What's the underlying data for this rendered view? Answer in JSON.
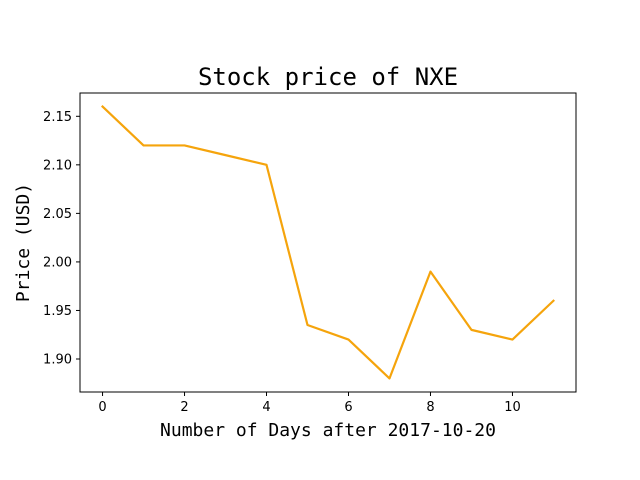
{
  "chart_data": {
    "type": "line",
    "title": "Stock price of NXE",
    "xlabel": "Number of Days after 2017-10-20",
    "ylabel": "Price (USD)",
    "x": [
      0,
      1,
      2,
      3,
      4,
      5,
      6,
      7,
      8,
      9,
      10,
      11
    ],
    "series": [
      {
        "values": [
          2.16,
          2.12,
          2.12,
          2.11,
          2.1,
          1.935,
          1.92,
          1.88,
          1.99,
          1.93,
          1.92,
          1.96
        ],
        "color": "#f5a40c"
      }
    ],
    "xlim": [
      -0.55,
      11.55
    ],
    "ylim": [
      1.866,
      2.174
    ],
    "xticks": [
      0,
      2,
      4,
      6,
      8,
      10
    ],
    "xtick_labels": [
      "0",
      "2",
      "4",
      "6",
      "8",
      "10"
    ],
    "yticks": [
      1.9,
      1.95,
      2.0,
      2.05,
      2.1,
      2.15
    ],
    "ytick_labels": [
      "1.90",
      "1.95",
      "2.00",
      "2.05",
      "2.10",
      "2.15"
    ],
    "grid": false,
    "legend": false
  }
}
